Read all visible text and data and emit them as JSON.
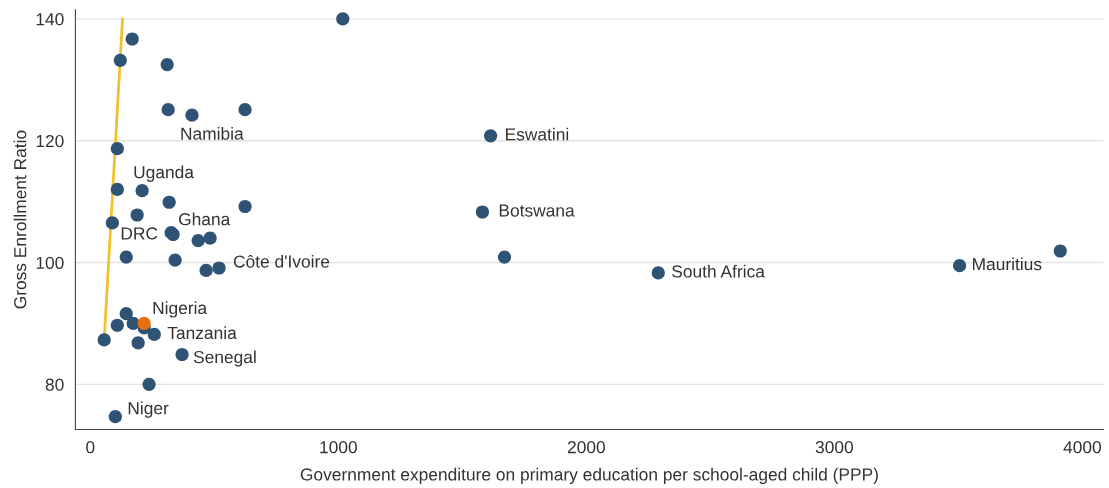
{
  "chart_data": {
    "type": "scatter",
    "xlabel": "Government expenditure on primary education per school-aged child (PPP)",
    "ylabel": "Gross Enrollment Ratio",
    "series": [
      {
        "color": "#2f5375",
        "marker": "circle",
        "x": [
          1018,
          169,
          121,
          310,
          314,
          410,
          624,
          109,
          1614,
          109,
          209,
          318,
          624,
          189,
          89,
          326,
          334,
          435,
          483,
          1581,
          145,
          342,
          467,
          519,
          1670,
          2290,
          3505,
          3911,
          145,
          109,
          173,
          217,
          258,
          193,
          56,
          370,
          237,
          101
        ],
        "values": [
          140,
          136.7,
          133.2,
          132.5,
          125.1,
          124.2,
          125.1,
          118.7,
          120.8,
          112.0,
          111.8,
          109.9,
          109.2,
          107.8,
          106.5,
          104.9,
          104.6,
          103.6,
          104.0,
          108.3,
          100.9,
          100.4,
          98.7,
          99.1,
          100.9,
          98.3,
          99.5,
          101.9,
          91.6,
          89.7,
          90.0,
          89.3,
          88.2,
          86.8,
          87.3,
          84.9,
          80.0,
          74.7
        ]
      },
      {
        "color": "#e8700f",
        "marker": "circle",
        "x": [
          217
        ],
        "values": [
          90.0
        ]
      },
      {
        "type": "line",
        "color": "#f2c12e",
        "marker": "none",
        "line_style": "solid",
        "x": [
          56,
          130
        ],
        "values": [
          87.3,
          140
        ]
      }
    ],
    "annotations": [
      {
        "text": "Namibia",
        "x": 410,
        "y": 124.2
      },
      {
        "text": "Eswatini",
        "x": 1614,
        "y": 120.8
      },
      {
        "text": "Uganda",
        "x": 209,
        "y": 111.8
      },
      {
        "text": "Ghana",
        "x": 326,
        "y": 104.9
      },
      {
        "text": "DRC",
        "x": 89,
        "y": 106.5
      },
      {
        "text": "Botswana",
        "x": 1581,
        "y": 108.3
      },
      {
        "text": "Côte d'Ivoire",
        "x": 519,
        "y": 99.1
      },
      {
        "text": "South Africa",
        "x": 2290,
        "y": 98.3
      },
      {
        "text": "Mauritius",
        "x": 3505,
        "y": 99.5
      },
      {
        "text": "Nigeria",
        "x": 217,
        "y": 90.0
      },
      {
        "text": "Tanzania",
        "x": 258,
        "y": 88.2
      },
      {
        "text": "Senegal",
        "x": 370,
        "y": 84.9
      },
      {
        "text": "Niger",
        "x": 101,
        "y": 74.7
      }
    ],
    "xlim": [
      -60,
      4085
    ],
    "ylim": [
      72.6,
      141.5
    ],
    "xticks": [
      0,
      1000,
      2000,
      3000,
      4000
    ],
    "yticks": [
      80,
      100,
      120,
      140
    ],
    "grid": "y"
  }
}
